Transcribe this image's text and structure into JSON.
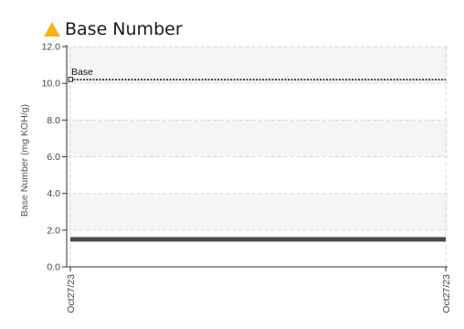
{
  "title": "Base Number",
  "status_icon": "warning-triangle-icon",
  "colors": {
    "warning": "#f2b619",
    "series": "#4a4a4a",
    "reference": "#222222",
    "band": "#f5f5f5",
    "grid": "#d9d9d9"
  },
  "chart_data": {
    "type": "line",
    "title": "Base Number",
    "ylabel": "Base Number (mg KOH/g)",
    "xlabel": "",
    "ylim": [
      0,
      12
    ],
    "yticks": [
      0,
      2,
      4,
      6,
      8,
      10,
      12
    ],
    "ytick_labels": [
      "0.0",
      "2.0",
      "4.0",
      "6.0",
      "8.0",
      "10.0",
      "12.0"
    ],
    "x_labels": [
      "Oct27/23",
      "Oct27/23"
    ],
    "series": [
      {
        "values": [
          1.5,
          1.5
        ]
      }
    ],
    "reference_line": {
      "label": "Base",
      "value": 10.2
    },
    "grid": true,
    "legend": "none"
  }
}
